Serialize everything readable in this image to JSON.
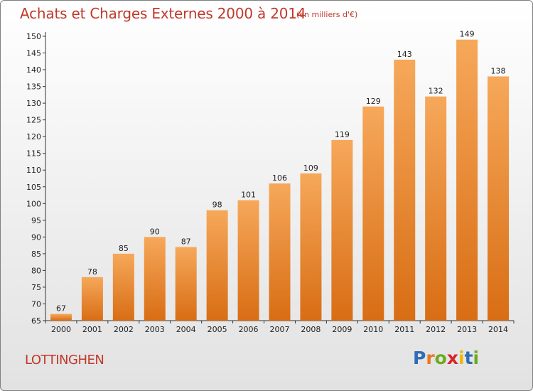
{
  "title": "Achats et Charges Externes 2000 à 2014",
  "subtitle": "(en milliers d'€)",
  "place": "LOTTINGHEN",
  "brand": {
    "text": "Proxiti",
    "letters": [
      {
        "char": "P",
        "color": "#2e6db4"
      },
      {
        "char": "r",
        "color": "#e87722"
      },
      {
        "char": "o",
        "color": "#6cab1f"
      },
      {
        "char": "x",
        "color": "#d6242a"
      },
      {
        "char": "i",
        "color": "#f2b705"
      },
      {
        "char": "t",
        "color": "#2e6db4"
      },
      {
        "char": "i",
        "color": "#6cab1f"
      }
    ]
  },
  "colors": {
    "accent": "#c0392b",
    "bar_light": "#f6a85a",
    "bar_dark": "#d86d14"
  },
  "chart_data": {
    "type": "bar",
    "categories": [
      "2000",
      "2001",
      "2002",
      "2003",
      "2004",
      "2005",
      "2006",
      "2007",
      "2008",
      "2009",
      "2010",
      "2011",
      "2012",
      "2013",
      "2014"
    ],
    "values": [
      67,
      78,
      85,
      90,
      87,
      98,
      101,
      106,
      109,
      119,
      129,
      143,
      132,
      149,
      138
    ],
    "data_labels": [
      "67",
      "78",
      "85",
      "90",
      "87",
      "98",
      "101",
      "106",
      "109",
      "119",
      "129",
      "143",
      "132",
      "149",
      "138"
    ],
    "title": "Achats et Charges Externes 2000 à 2014",
    "subtitle": "(en milliers d'€)",
    "xlabel": "",
    "ylabel": "",
    "ylim": [
      65,
      150
    ],
    "yticks": [
      65,
      70,
      75,
      80,
      85,
      90,
      95,
      100,
      105,
      110,
      115,
      120,
      125,
      130,
      135,
      140,
      145,
      150
    ],
    "grid": false
  }
}
